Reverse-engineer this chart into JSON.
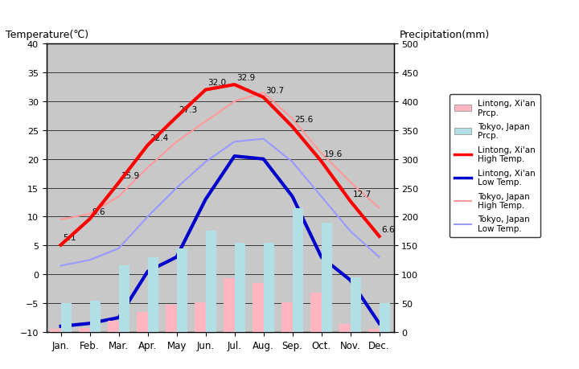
{
  "months": [
    "Jan.",
    "Feb.",
    "Mar.",
    "Apr.",
    "May",
    "Jun.",
    "Jul.",
    "Aug.",
    "Sep.",
    "Oct.",
    "Nov.",
    "Dec."
  ],
  "lintong_high_temp": [
    5.1,
    9.6,
    15.9,
    22.4,
    27.3,
    32.0,
    32.9,
    30.7,
    25.6,
    19.6,
    12.7,
    6.6
  ],
  "lintong_low_temp": [
    -9.0,
    -8.5,
    -7.5,
    0.5,
    3.0,
    13.0,
    20.5,
    20.0,
    13.5,
    3.0,
    -1.0,
    -8.5
  ],
  "tokyo_high_temp": [
    9.5,
    10.5,
    13.5,
    18.5,
    23.0,
    26.5,
    30.0,
    31.5,
    27.0,
    21.0,
    16.0,
    11.5
  ],
  "tokyo_low_temp": [
    1.5,
    2.5,
    4.5,
    10.0,
    15.0,
    19.5,
    23.0,
    23.5,
    19.5,
    13.5,
    7.5,
    3.0
  ],
  "lintong_prcp_mm": [
    6,
    7,
    20,
    35,
    48,
    52,
    93,
    85,
    52,
    68,
    14,
    5
  ],
  "tokyo_prcp_mm": [
    50,
    55,
    115,
    130,
    145,
    175,
    155,
    155,
    215,
    190,
    95,
    50
  ],
  "lintong_high_labels": [
    "5.1",
    "9.6",
    "15.9",
    "22.4",
    "27.3",
    "32.0",
    "32.9",
    "30.7",
    "25.6",
    "19.6",
    "12.7",
    "6.6"
  ],
  "title_left": "Temperature(℃)",
  "title_right": "Precipitation(mm)",
  "ylim_temp": [
    -10,
    40
  ],
  "ylim_prcp": [
    0,
    500
  ],
  "bg_color": "#c8c8c8",
  "lintong_high_color": "#ff0000",
  "lintong_low_color": "#0000cc",
  "tokyo_high_color": "#ff9999",
  "tokyo_low_color": "#9999ff",
  "lintong_prcp_color": "#ffb6c1",
  "tokyo_prcp_color": "#b0e0e6",
  "legend_labels": [
    "Lintong, Xi'an\nPrcp.",
    "Tokyo, Japan\nPrcp.",
    "Lintong, Xi'an\nHigh Temp.",
    "Lintong, Xi'an\nLow Temp.",
    "Tokyo, Japan\nHigh Temp.",
    "Tokyo, Japan\nLow Temp."
  ]
}
